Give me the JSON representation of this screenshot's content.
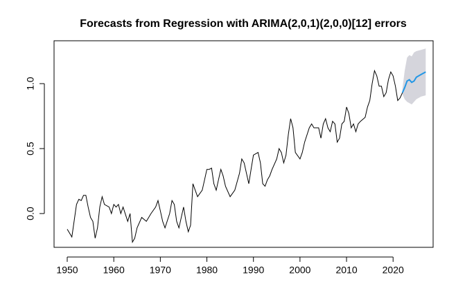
{
  "chart_data": {
    "type": "line",
    "title": "Forecasts from Regression with ARIMA(2,0,1)(2,0,0)[12] errors",
    "xlim": [
      1947.17,
      2028.6
    ],
    "ylim": [
      -0.26,
      1.33
    ],
    "xticks": [
      1950,
      1960,
      1970,
      1980,
      1990,
      2000,
      2010,
      2020
    ],
    "yticks": [
      {
        "value": 0,
        "label": "0.0"
      },
      {
        "value": 0.5,
        "label": "0.5"
      },
      {
        "value": 1,
        "label": "1.0"
      }
    ],
    "series": [
      {
        "color": "#000000",
        "x": [
          1950,
          1951,
          1952,
          1952.5,
          1953,
          1953.5,
          1954,
          1954.5,
          1955,
          1955.5,
          1956,
          1956.5,
          1957,
          1957.5,
          1958,
          1959,
          1959.5,
          1960,
          1960.5,
          1961,
          1961.5,
          1962,
          1963,
          1963.5,
          1964,
          1964.5,
          1965,
          1966,
          1967,
          1968,
          1969,
          1969.5,
          1970,
          1970.5,
          1971,
          1972,
          1972.5,
          1973,
          1973.5,
          1974,
          1975,
          1975.5,
          1976,
          1976.5,
          1977,
          1977.5,
          1978,
          1979,
          1979.5,
          1980,
          1980.5,
          1981,
          1981.5,
          1982,
          1982.5,
          1983,
          1983.5,
          1984,
          1985,
          1986,
          1987,
          1987.5,
          1988,
          1989,
          1989.5,
          1990,
          1991,
          1991.5,
          1992,
          1992.5,
          1993,
          1993.5,
          1994,
          1995,
          1995.5,
          1996,
          1996.5,
          1997,
          1997.5,
          1998,
          1998.5,
          1999,
          2000,
          2000.5,
          2001,
          2002,
          2002.5,
          2003,
          2004,
          2004.5,
          2005,
          2005.5,
          2006,
          2006.5,
          2007,
          2007.5,
          2008,
          2008.5,
          2009,
          2009.5,
          2010,
          2010.5,
          2011,
          2011.5,
          2012,
          2012.5,
          2013,
          2014,
          2014.5,
          2015,
          2015.5,
          2016,
          2016.5,
          2017,
          2017.5,
          2018,
          2018.5,
          2019,
          2019.5,
          2020,
          2020.5,
          2021,
          2021.5,
          2022
        ],
        "values": [
          -0.12,
          -0.18,
          0.07,
          0.11,
          0.1,
          0.14,
          0.14,
          0.05,
          -0.03,
          -0.06,
          -0.19,
          -0.11,
          0.05,
          0.13,
          0.07,
          0.05,
          0.0,
          0.07,
          0.05,
          0.07,
          0.0,
          0.05,
          -0.06,
          0.0,
          -0.22,
          -0.19,
          -0.11,
          -0.03,
          -0.06,
          0.0,
          0.05,
          0.1,
          0.02,
          -0.06,
          -0.11,
          0.0,
          0.1,
          0.07,
          -0.06,
          -0.11,
          0.05,
          -0.06,
          -0.14,
          -0.09,
          0.23,
          0.18,
          0.13,
          0.18,
          0.26,
          0.34,
          0.34,
          0.35,
          0.23,
          0.18,
          0.26,
          0.34,
          0.29,
          0.21,
          0.13,
          0.18,
          0.31,
          0.42,
          0.39,
          0.23,
          0.34,
          0.45,
          0.47,
          0.39,
          0.23,
          0.21,
          0.26,
          0.29,
          0.34,
          0.42,
          0.5,
          0.47,
          0.39,
          0.45,
          0.61,
          0.73,
          0.66,
          0.47,
          0.42,
          0.47,
          0.55,
          0.66,
          0.69,
          0.66,
          0.66,
          0.58,
          0.69,
          0.73,
          0.66,
          0.63,
          0.71,
          0.69,
          0.55,
          0.58,
          0.69,
          0.71,
          0.82,
          0.77,
          0.66,
          0.69,
          0.63,
          0.69,
          0.71,
          0.74,
          0.82,
          0.87,
          1.0,
          1.1,
          1.06,
          0.98,
          0.98,
          0.9,
          0.93,
          1.03,
          1.09,
          1.06,
          0.98,
          0.87,
          0.89,
          0.93
        ]
      }
    ],
    "forecast": {
      "color": "#2297e6",
      "band_color": "#d5d5dc",
      "x": [
        2022,
        2022.5,
        2023,
        2023.5,
        2024,
        2024.5,
        2025,
        2026,
        2027
      ],
      "values": [
        0.93,
        0.97,
        1.02,
        1.03,
        1.01,
        1.02,
        1.05,
        1.07,
        1.09
      ],
      "lower": [
        0.92,
        0.88,
        0.86,
        0.85,
        0.84,
        0.86,
        0.88,
        0.9,
        0.91
      ],
      "upper": [
        0.96,
        1.1,
        1.2,
        1.22,
        1.21,
        1.24,
        1.25,
        1.26,
        1.27
      ]
    }
  }
}
